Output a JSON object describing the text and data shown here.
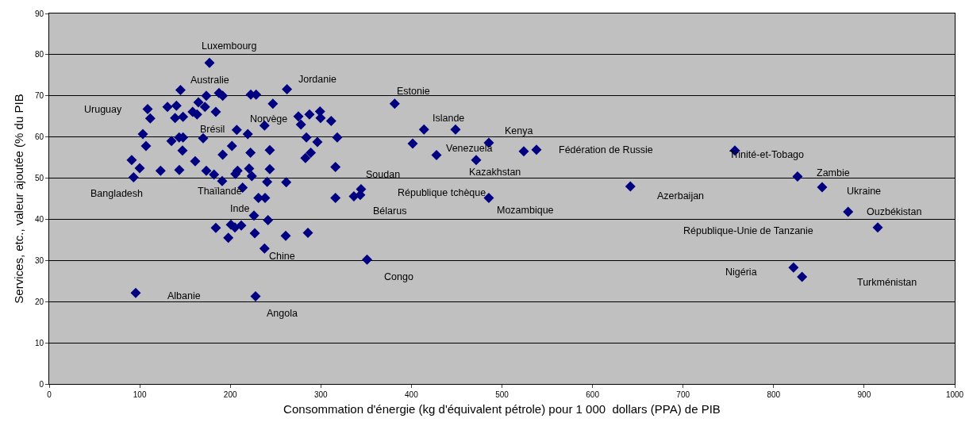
{
  "chart_data": {
    "type": "scatter",
    "xlabel": "Consommation d'énergie (kg d'équivalent pétrole) pour 1 000  dollars (PPA) de PIB",
    "ylabel": "Services, etc., valeur ajoutée (% du PIB",
    "marker": "diamond",
    "grid": "y",
    "xlim": [
      0,
      1000
    ],
    "xticks": [
      0,
      100,
      200,
      300,
      400,
      500,
      600,
      700,
      800,
      900,
      1000
    ],
    "ylim": [
      0,
      90
    ],
    "yticks": [
      0,
      10,
      20,
      30,
      40,
      50,
      60,
      70,
      80,
      90
    ],
    "series": [
      {
        "color": "#000080",
        "x": [
          177,
          145,
          173.5,
          187.5,
          191.6,
          222.6,
          228.5,
          262.6,
          247,
          108.7,
          111.6,
          130.6,
          140.5,
          139,
          147.8,
          164.8,
          172,
          158.4,
          163.3,
          184,
          275.2,
          287.4,
          299.1,
          299.7,
          311.4,
          278,
          237.8,
          207.1,
          219.3,
          103.4,
          135,
          143.5,
          147.8,
          170,
          284,
          318.1,
          296.2,
          106.9,
          147.2,
          201.8,
          222.3,
          243.6,
          191.6,
          288.9,
          283,
          91.1,
          99.9,
          93.2,
          123,
          143.7,
          161.2,
          173.5,
          182,
          191,
          205.7,
          208,
          220.8,
          223.7,
          243.6,
          240.7,
          261.8,
          316.1,
          213.6,
          231.1,
          238.4,
          316.1,
          226.1,
          241.6,
          184,
          200.7,
          205.1,
          212.1,
          197.8,
          227,
          261.2,
          285.7,
          237.8,
          95.5,
          227.9,
          381.5,
          336.5,
          344.4,
          343.5,
          413.9,
          448.7,
          401.4,
          427.7,
          485.5,
          471.5,
          524.1,
          538.1,
          485.5,
          351,
          757.2,
          826.4,
          641.8,
          853.6,
          882.3,
          915,
          822,
          831.4
        ],
        "values": [
          78,
          71.4,
          70,
          70.7,
          70,
          70.3,
          70.3,
          71.6,
          68.1,
          66.8,
          64.5,
          67.3,
          67.6,
          64.6,
          64.9,
          68.4,
          67.3,
          66.1,
          65.5,
          66.1,
          65,
          65.5,
          66.2,
          64.6,
          63.9,
          63,
          62.8,
          61.7,
          60.7,
          60.7,
          59,
          59.9,
          59.9,
          59.7,
          59.9,
          59.9,
          58.8,
          57.8,
          56.7,
          57.8,
          56.2,
          56.8,
          55.7,
          56.2,
          54.9,
          54.4,
          52.4,
          50.2,
          51.8,
          52,
          54.1,
          51.8,
          50.9,
          49.3,
          51,
          51.8,
          52.3,
          50.5,
          52.2,
          49.1,
          49,
          52.7,
          47.7,
          45.2,
          45.2,
          45.2,
          40.9,
          39.8,
          37.9,
          38.7,
          38,
          38.5,
          35.5,
          36.6,
          36,
          36.7,
          32.9,
          22.1,
          21.3,
          68.1,
          45.6,
          47.3,
          45.9,
          61.8,
          61.8,
          58.4,
          55.6,
          58.6,
          54.4,
          56.5,
          56.9,
          45.2,
          30.2,
          56.7,
          50.4,
          48,
          47.8,
          41.8,
          38,
          28.3,
          26
        ]
      }
    ],
    "annotations": [
      {
        "text": "Luxembourg",
        "x": 177,
        "y": 78
      },
      {
        "text": "Australie",
        "x": 187.5,
        "y": 70.7
      },
      {
        "text": "Jordanie",
        "x": 262.6,
        "y": 71.6
      },
      {
        "text": "Estonie",
        "x": 381.5,
        "y": 68.1
      },
      {
        "text": "Uruguay",
        "x": 108.7,
        "y": 66.8
      },
      {
        "text": "Islande",
        "x": 448.7,
        "y": 61.8
      },
      {
        "text": "Norvège",
        "x": 237.8,
        "y": 62.8
      },
      {
        "text": "Brésil",
        "x": 170,
        "y": 59.7
      },
      {
        "text": "Kenya",
        "x": 485.5,
        "y": 58.6
      },
      {
        "text": "Venezuela",
        "x": 427.7,
        "y": 55.6
      },
      {
        "text": "Fédération de Russie",
        "x": 538.1,
        "y": 56.9
      },
      {
        "text": "Trinité-et-Tobago",
        "x": 757.2,
        "y": 56.7
      },
      {
        "text": "Kazakhstan",
        "x": 471.5,
        "y": 54.4
      },
      {
        "text": "Zambie",
        "x": 826.4,
        "y": 50.4
      },
      {
        "text": "Soudan",
        "x": 344.4,
        "y": 47.3
      },
      {
        "text": "Bangladesh",
        "x": 93.2,
        "y": 50.2
      },
      {
        "text": "Thaïlande",
        "x": 182,
        "y": 50.9
      },
      "République tchèque",
      {
        "text": "Azerbaijan",
        "x": 641.8,
        "y": 48
      },
      {
        "text": "Ukraine",
        "x": 853.6,
        "y": 47.8
      },
      {
        "text": "Inde",
        "x": 226.1,
        "y": 40.9
      },
      {
        "text": "Bélarus",
        "x": 343.5,
        "y": 45.9
      },
      {
        "text": "Mozambique",
        "x": 485.5,
        "y": 45.2
      },
      {
        "text": "Ouzbékistan",
        "x": 882.3,
        "y": 41.8
      },
      "République-Unie de Tanzanie",
      {
        "text": "Chine",
        "x": 237.8,
        "y": 32.9
      },
      {
        "text": "Congo",
        "x": 351,
        "y": 30.2
      },
      "Nigéria",
      "Turkménistan",
      "Albanie",
      {
        "text": "Angola",
        "x": 227.9,
        "y": 21.3
      }
    ]
  }
}
